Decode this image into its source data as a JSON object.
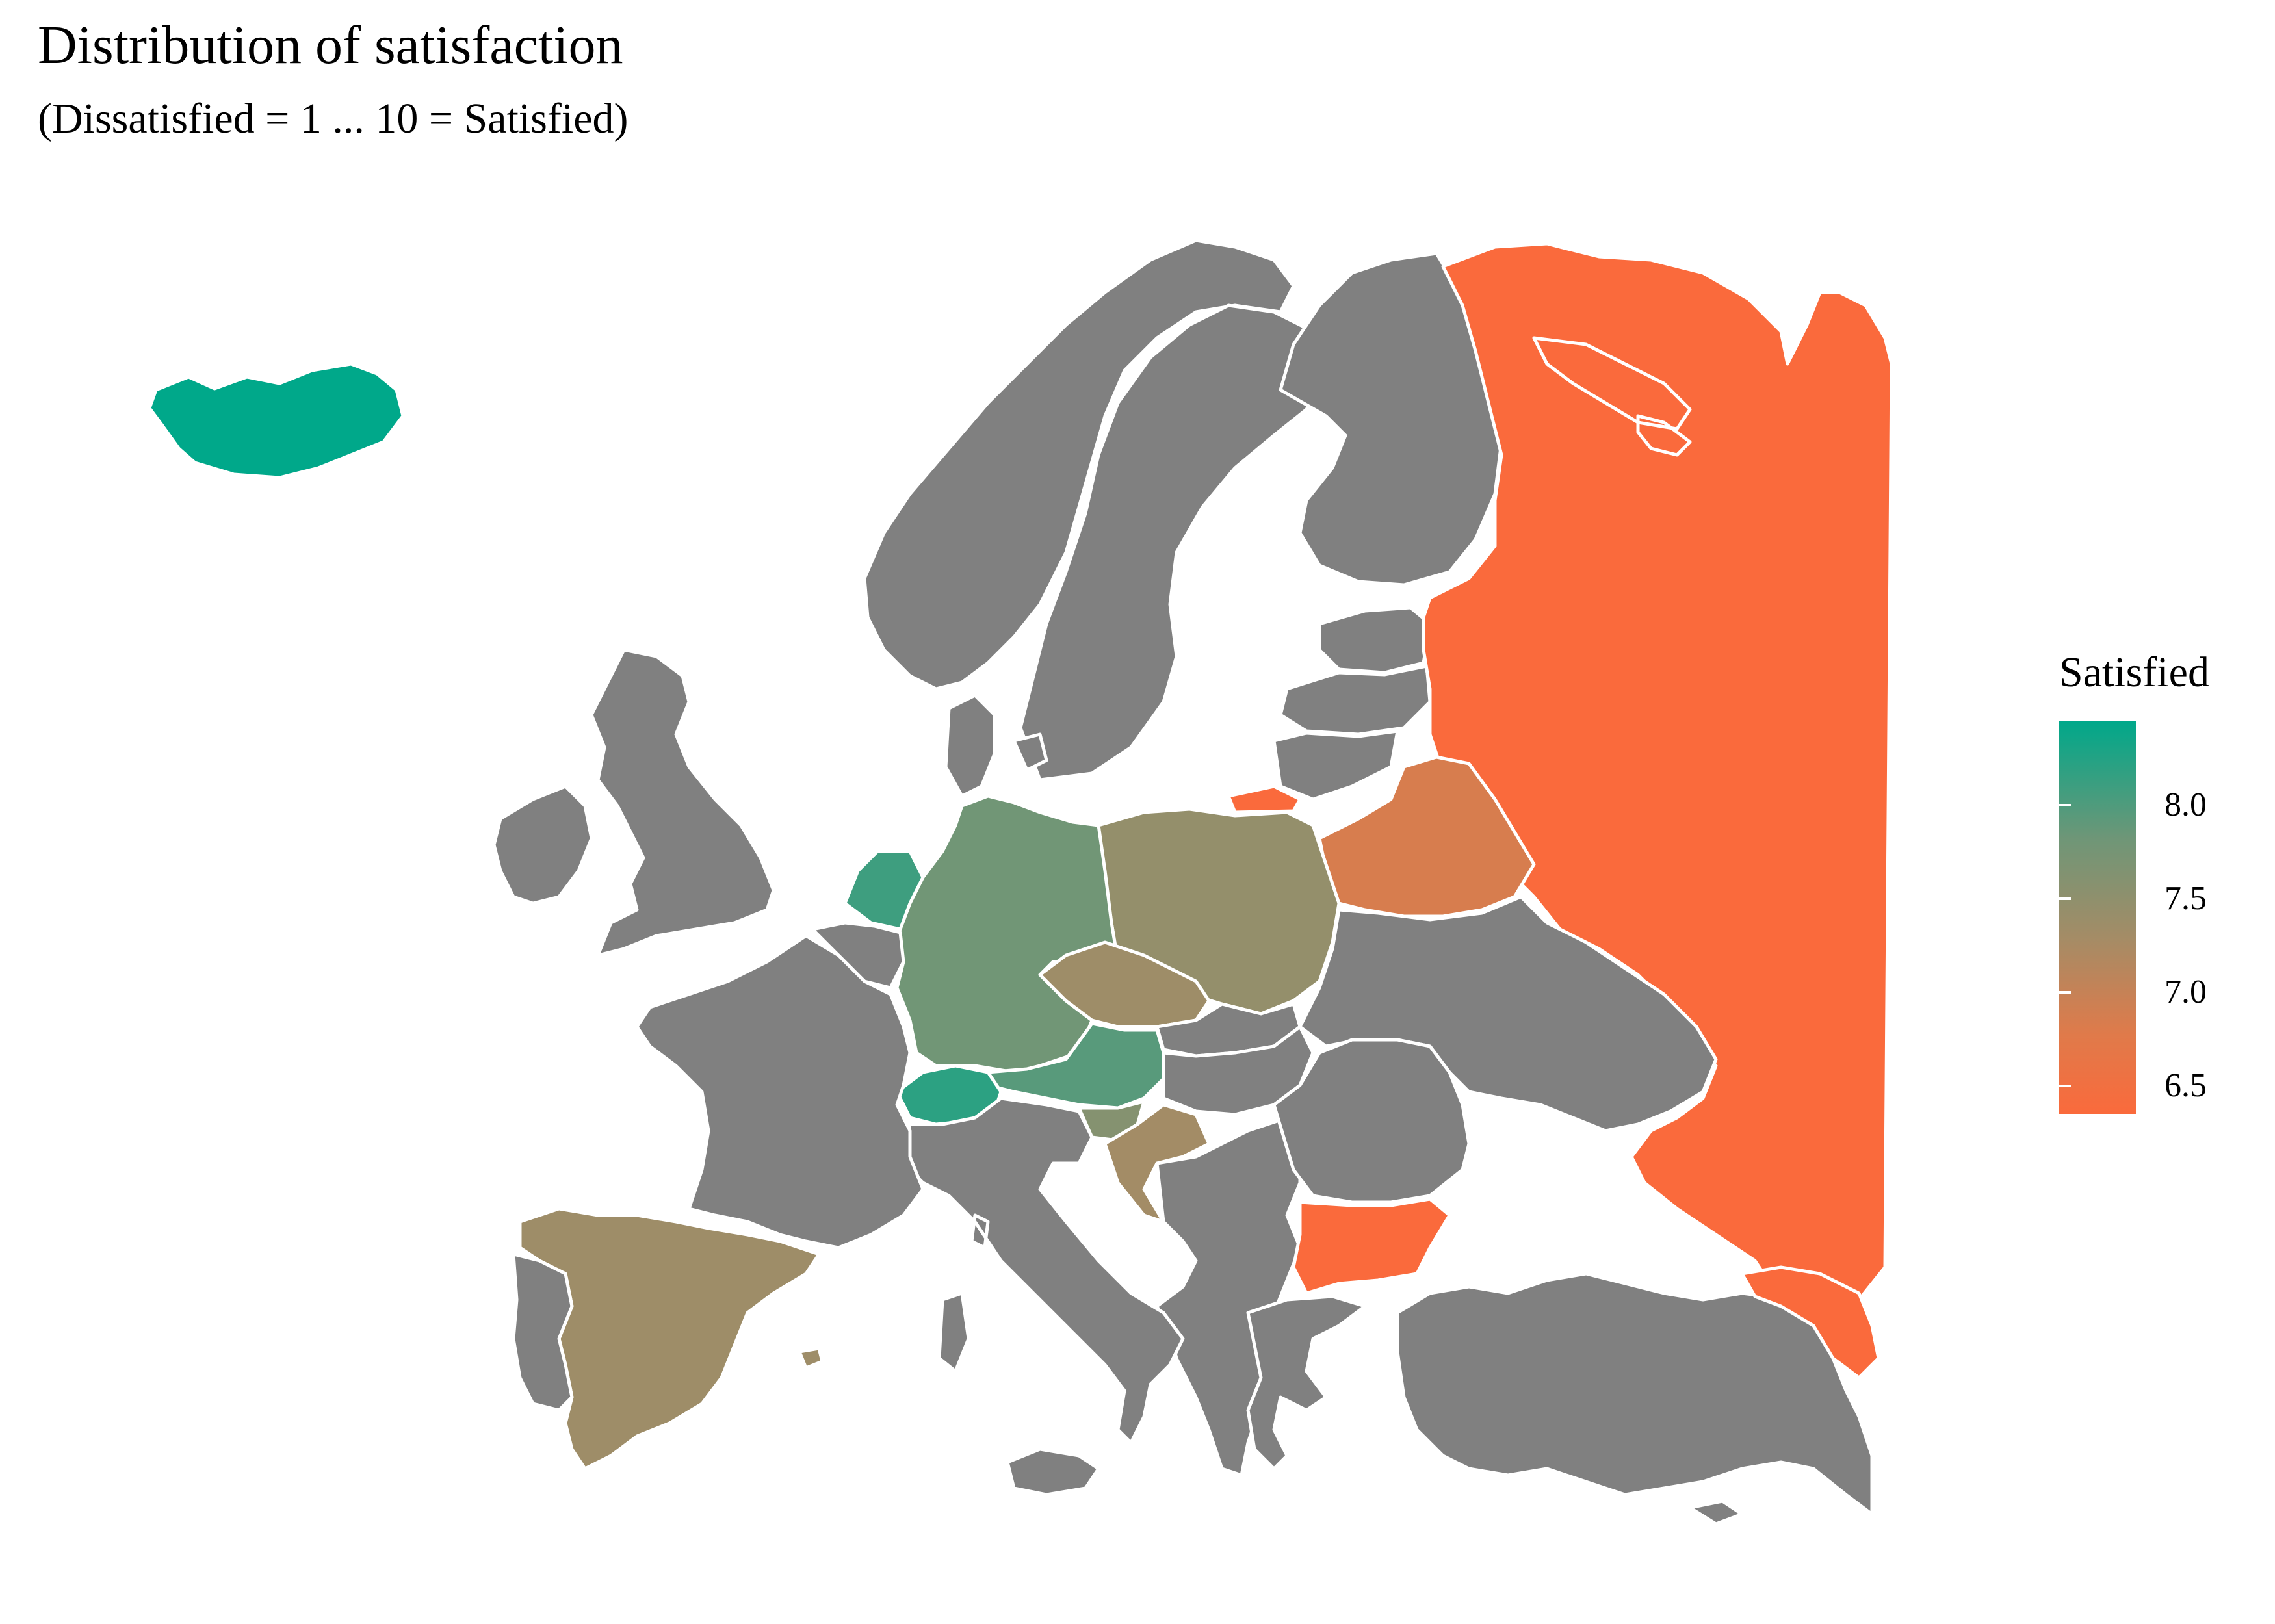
{
  "title": "Distribution of satisfaction",
  "subtitle": "(Dissatisfied = 1 ... 10 = Satisfied)",
  "legend": {
    "title": "Satisfied",
    "ticks": [
      "8.0",
      "7.5",
      "7.0",
      "6.5"
    ],
    "tick_values": [
      8.0,
      7.5,
      7.0,
      6.5
    ],
    "range": [
      6.35,
      8.45
    ],
    "color_low": "#fa6a3c",
    "color_high": "#00a88a",
    "no_data_color": "#808080"
  },
  "countries": [
    {
      "name": "Iceland",
      "value": 8.45
    },
    {
      "name": "Switzerland",
      "value": 8.2
    },
    {
      "name": "Netherlands",
      "value": 8.1
    },
    {
      "name": "Austria",
      "value": 7.95
    },
    {
      "name": "Germany",
      "value": 7.8
    },
    {
      "name": "Poland",
      "value": 7.45
    },
    {
      "name": "Slovenia",
      "value": 7.6
    },
    {
      "name": "Czechia",
      "value": 7.35
    },
    {
      "name": "Spain",
      "value": 7.35
    },
    {
      "name": "Croatia",
      "value": 7.3
    },
    {
      "name": "Belarus",
      "value": 6.85
    },
    {
      "name": "Russia",
      "value": 6.35
    },
    {
      "name": "Bulgaria",
      "value": 6.35
    }
  ]
}
